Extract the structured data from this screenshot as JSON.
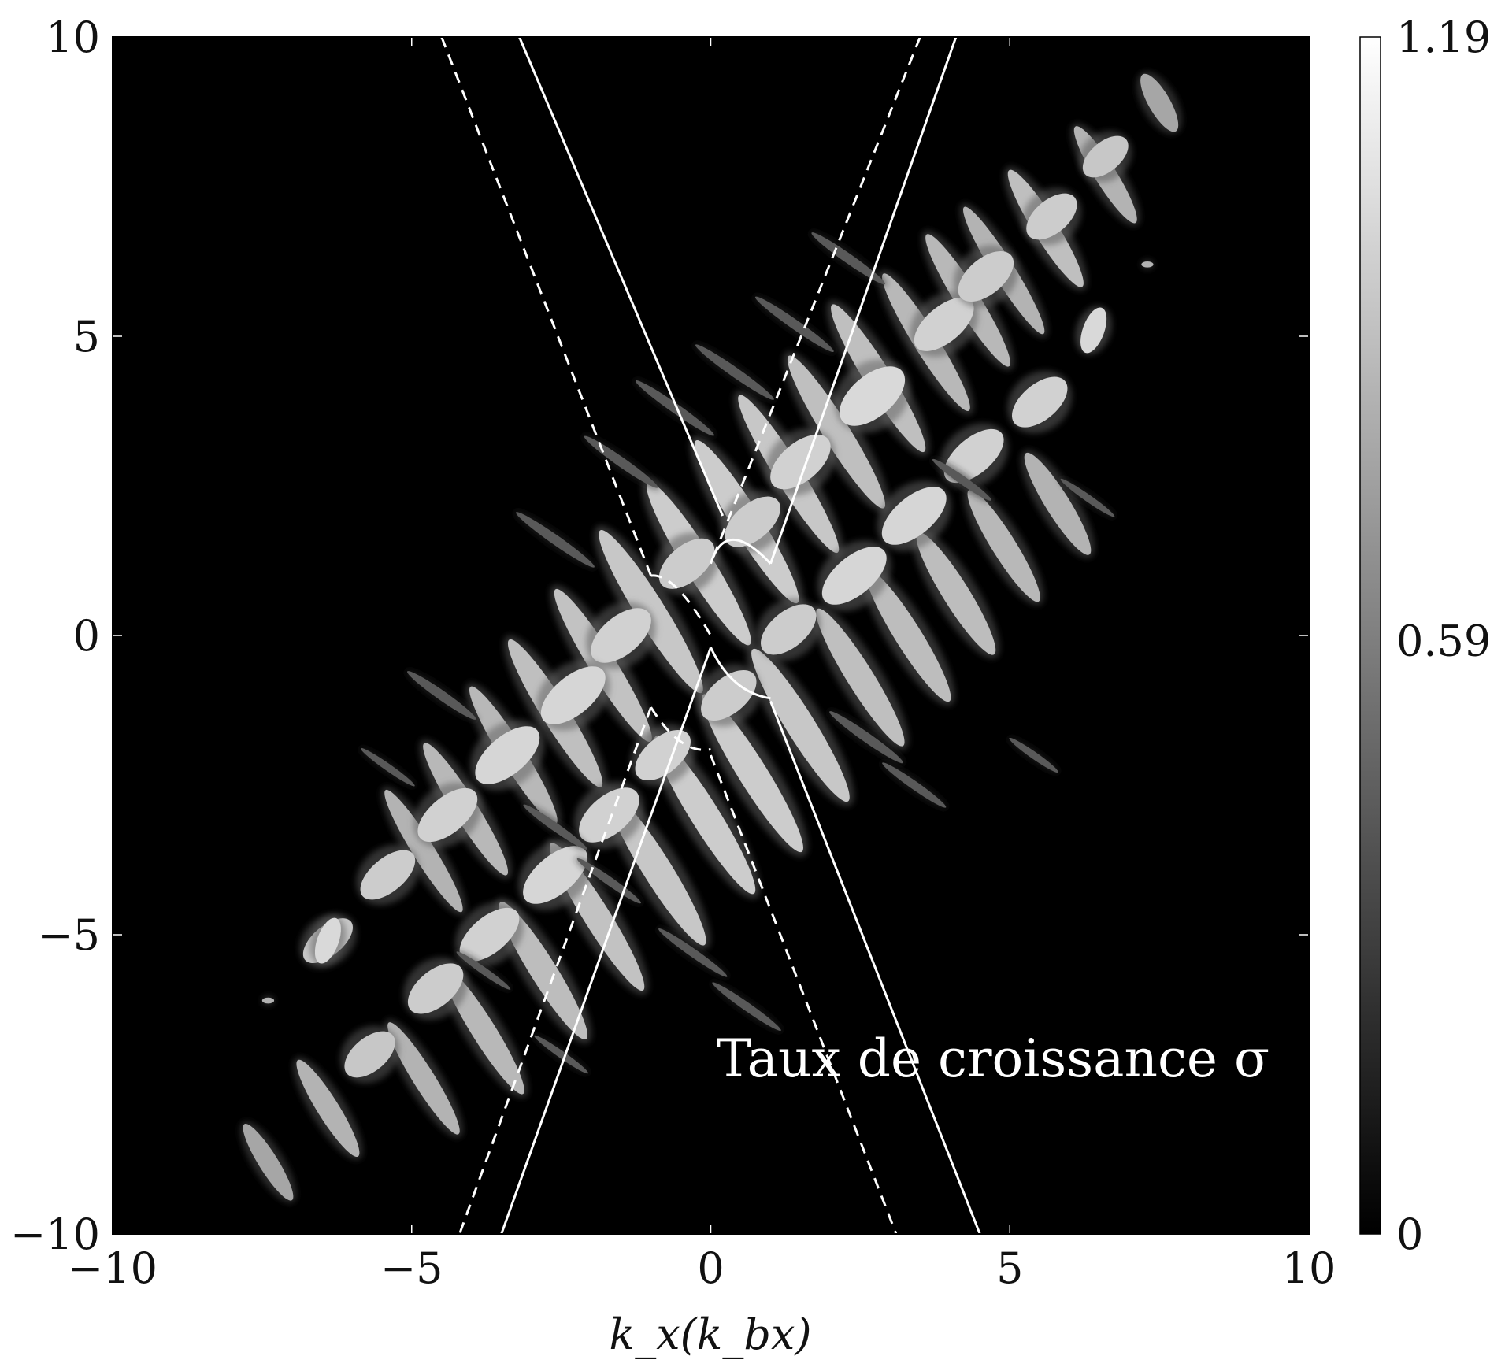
{
  "chart_data": {
    "type": "heatmap",
    "title": "",
    "xlabel": "k_x(k_bx)",
    "ylabel": "",
    "xlim": [
      -10,
      10
    ],
    "ylim": [
      -10,
      10
    ],
    "x_ticks": [
      -10,
      -5,
      0,
      5,
      10
    ],
    "y_ticks": [
      -10,
      -5,
      0,
      5,
      10
    ],
    "x_tick_labels": [
      "−10",
      "−5",
      "0",
      "5",
      "10"
    ],
    "y_tick_labels": [
      "−10",
      "−5",
      "0",
      "5",
      "10"
    ],
    "colormap": "gray",
    "background_color": "#000000",
    "colorbar": {
      "min": 0,
      "max": 1.19,
      "ticks": [
        0,
        0.59,
        1.19
      ],
      "tick_labels": [
        "0",
        "0.59",
        "1.19"
      ]
    },
    "annotation": "Taux de croissance σ",
    "resonance_curves": [
      {
        "style": "solid",
        "branches": [
          {
            "points": [
              [
                -3.2,
                10
              ],
              [
                0.2,
                2.0
              ]
            ]
          },
          {
            "points": [
              [
                4.1,
                10
              ],
              [
                1.0,
                1.2
              ]
            ]
          },
          {
            "points": [
              [
                0.0,
                -0.2
              ],
              [
                -3.5,
                -10
              ]
            ]
          },
          {
            "points": [
              [
                1.0,
                -1.1
              ],
              [
                4.5,
                -10
              ]
            ]
          }
        ],
        "arcs": [
          {
            "points": [
              [
                0.0,
                1.2
              ],
              [
                0.25,
                2.0
              ],
              [
                1.0,
                1.2
              ]
            ]
          },
          {
            "points": [
              [
                0.0,
                -0.2
              ],
              [
                0.35,
                -0.95
              ],
              [
                1.0,
                -1.05
              ]
            ]
          }
        ]
      },
      {
        "style": "dashed",
        "branches": [
          {
            "points": [
              [
                -4.5,
                10
              ],
              [
                -1.0,
                1.0
              ]
            ]
          },
          {
            "points": [
              [
                3.5,
                10
              ],
              [
                0.0,
                1.2
              ]
            ]
          },
          {
            "points": [
              [
                -1.0,
                -1.2
              ],
              [
                -4.2,
                -10
              ]
            ]
          },
          {
            "points": [
              [
                0.0,
                -2.0
              ],
              [
                3.1,
                -10
              ]
            ]
          }
        ],
        "arcs": [
          {
            "points": [
              [
                -1.0,
                1.0
              ],
              [
                -0.6,
                1.05
              ],
              [
                0.0,
                0.0
              ]
            ]
          },
          {
            "points": [
              [
                -1.0,
                -1.2
              ],
              [
                -0.5,
                -2.0
              ],
              [
                0.0,
                -1.9
              ]
            ]
          }
        ]
      }
    ],
    "features": [
      {
        "x": 7.5,
        "y": 8.9,
        "w": 0.18,
        "h": 0.55,
        "angle": 60,
        "intensity": 0.65
      },
      {
        "x": 6.6,
        "y": 7.7,
        "w": 0.18,
        "h": 0.95,
        "angle": 58,
        "intensity": 0.7
      },
      {
        "x": 5.6,
        "y": 6.8,
        "w": 0.2,
        "h": 1.15,
        "angle": 58,
        "intensity": 0.75
      },
      {
        "x": 4.9,
        "y": 6.1,
        "w": 0.18,
        "h": 1.25,
        "angle": 58,
        "intensity": 0.7
      },
      {
        "x": 4.3,
        "y": 5.6,
        "w": 0.2,
        "h": 1.3,
        "angle": 58,
        "intensity": 0.72
      },
      {
        "x": 3.6,
        "y": 4.9,
        "w": 0.2,
        "h": 1.35,
        "angle": 58,
        "intensity": 0.72
      },
      {
        "x": 2.8,
        "y": 4.3,
        "w": 0.22,
        "h": 1.45,
        "angle": 58,
        "intensity": 0.75
      },
      {
        "x": 2.1,
        "y": 3.4,
        "w": 0.22,
        "h": 1.5,
        "angle": 58,
        "intensity": 0.75
      },
      {
        "x": 1.3,
        "y": 2.7,
        "w": 0.22,
        "h": 1.55,
        "angle": 58,
        "intensity": 0.78
      },
      {
        "x": 0.6,
        "y": 1.9,
        "w": 0.24,
        "h": 1.6,
        "angle": 58,
        "intensity": 0.8
      },
      {
        "x": -0.2,
        "y": 1.2,
        "w": 0.24,
        "h": 1.6,
        "angle": 58,
        "intensity": 0.8
      },
      {
        "x": -1.0,
        "y": 0.4,
        "w": 0.24,
        "h": 1.6,
        "angle": 58,
        "intensity": 0.78
      },
      {
        "x": -1.8,
        "y": -0.5,
        "w": 0.22,
        "h": 1.5,
        "angle": 58,
        "intensity": 0.76
      },
      {
        "x": -2.6,
        "y": -1.3,
        "w": 0.22,
        "h": 1.45,
        "angle": 58,
        "intensity": 0.75
      },
      {
        "x": -3.3,
        "y": -2.0,
        "w": 0.2,
        "h": 1.35,
        "angle": 58,
        "intensity": 0.72
      },
      {
        "x": -4.1,
        "y": -2.9,
        "w": 0.2,
        "h": 1.3,
        "angle": 58,
        "intensity": 0.72
      },
      {
        "x": -4.8,
        "y": -3.6,
        "w": 0.18,
        "h": 1.2,
        "angle": 58,
        "intensity": 0.7
      },
      {
        "x": 5.8,
        "y": 2.2,
        "w": 0.2,
        "h": 1.0,
        "angle": 58,
        "intensity": 0.7
      },
      {
        "x": 4.9,
        "y": 1.5,
        "w": 0.2,
        "h": 1.1,
        "angle": 58,
        "intensity": 0.72
      },
      {
        "x": 4.1,
        "y": 0.7,
        "w": 0.22,
        "h": 1.2,
        "angle": 58,
        "intensity": 0.74
      },
      {
        "x": 3.3,
        "y": 0.0,
        "w": 0.22,
        "h": 1.3,
        "angle": 58,
        "intensity": 0.74
      },
      {
        "x": 2.5,
        "y": -0.7,
        "w": 0.22,
        "h": 1.35,
        "angle": 58,
        "intensity": 0.75
      },
      {
        "x": 1.5,
        "y": -1.5,
        "w": 0.24,
        "h": 1.5,
        "angle": 58,
        "intensity": 0.78
      },
      {
        "x": 0.7,
        "y": -2.3,
        "w": 0.24,
        "h": 1.55,
        "angle": 58,
        "intensity": 0.8
      },
      {
        "x": -0.1,
        "y": -3.0,
        "w": 0.24,
        "h": 1.55,
        "angle": 58,
        "intensity": 0.8
      },
      {
        "x": -0.9,
        "y": -3.9,
        "w": 0.24,
        "h": 1.5,
        "angle": 58,
        "intensity": 0.78
      },
      {
        "x": -1.9,
        "y": -4.7,
        "w": 0.22,
        "h": 1.45,
        "angle": 58,
        "intensity": 0.76
      },
      {
        "x": -2.8,
        "y": -5.6,
        "w": 0.22,
        "h": 1.35,
        "angle": 58,
        "intensity": 0.74
      },
      {
        "x": -3.8,
        "y": -6.6,
        "w": 0.2,
        "h": 1.25,
        "angle": 58,
        "intensity": 0.72
      },
      {
        "x": -4.8,
        "y": -7.4,
        "w": 0.18,
        "h": 1.1,
        "angle": 58,
        "intensity": 0.7
      },
      {
        "x": -6.4,
        "y": -7.9,
        "w": 0.18,
        "h": 0.95,
        "angle": 58,
        "intensity": 0.7
      },
      {
        "x": -7.4,
        "y": -8.8,
        "w": 0.16,
        "h": 0.75,
        "angle": 58,
        "intensity": 0.65
      },
      {
        "x": 2.7,
        "y": 4.0,
        "w": 0.35,
        "h": 0.65,
        "angle": 140,
        "intensity": 0.85
      },
      {
        "x": 3.9,
        "y": 5.2,
        "w": 0.3,
        "h": 0.6,
        "angle": 140,
        "intensity": 0.82
      },
      {
        "x": 4.6,
        "y": 6.0,
        "w": 0.3,
        "h": 0.55,
        "angle": 140,
        "intensity": 0.8
      },
      {
        "x": 5.7,
        "y": 7.0,
        "w": 0.28,
        "h": 0.5,
        "angle": 140,
        "intensity": 0.8
      },
      {
        "x": 6.6,
        "y": 8.0,
        "w": 0.25,
        "h": 0.45,
        "angle": 140,
        "intensity": 0.78
      },
      {
        "x": 1.5,
        "y": 2.9,
        "w": 0.32,
        "h": 0.6,
        "angle": 140,
        "intensity": 0.82
      },
      {
        "x": 0.7,
        "y": 1.9,
        "w": 0.3,
        "h": 0.55,
        "angle": 140,
        "intensity": 0.8
      },
      {
        "x": -0.4,
        "y": 1.2,
        "w": 0.3,
        "h": 0.55,
        "angle": 140,
        "intensity": 0.8
      },
      {
        "x": -1.5,
        "y": 0.0,
        "w": 0.32,
        "h": 0.6,
        "angle": 140,
        "intensity": 0.82
      },
      {
        "x": -2.3,
        "y": -1.0,
        "w": 0.32,
        "h": 0.65,
        "angle": 140,
        "intensity": 0.84
      },
      {
        "x": -3.4,
        "y": -2.0,
        "w": 0.32,
        "h": 0.65,
        "angle": 140,
        "intensity": 0.84
      },
      {
        "x": -4.4,
        "y": -3.0,
        "w": 0.3,
        "h": 0.6,
        "angle": 140,
        "intensity": 0.82
      },
      {
        "x": -5.4,
        "y": -4.0,
        "w": 0.28,
        "h": 0.55,
        "angle": 140,
        "intensity": 0.8
      },
      {
        "x": -6.4,
        "y": -5.1,
        "w": 0.25,
        "h": 0.5,
        "angle": 140,
        "intensity": 0.78
      },
      {
        "x": 5.5,
        "y": 3.9,
        "w": 0.3,
        "h": 0.55,
        "angle": 140,
        "intensity": 0.82
      },
      {
        "x": 4.4,
        "y": 3.0,
        "w": 0.3,
        "h": 0.6,
        "angle": 140,
        "intensity": 0.82
      },
      {
        "x": 3.4,
        "y": 2.0,
        "w": 0.32,
        "h": 0.65,
        "angle": 140,
        "intensity": 0.84
      },
      {
        "x": 2.4,
        "y": 1.0,
        "w": 0.32,
        "h": 0.65,
        "angle": 140,
        "intensity": 0.84
      },
      {
        "x": 1.3,
        "y": 0.1,
        "w": 0.3,
        "h": 0.55,
        "angle": 140,
        "intensity": 0.8
      },
      {
        "x": 0.3,
        "y": -1.0,
        "w": 0.3,
        "h": 0.55,
        "angle": 140,
        "intensity": 0.8
      },
      {
        "x": -0.8,
        "y": -2.0,
        "w": 0.3,
        "h": 0.55,
        "angle": 140,
        "intensity": 0.82
      },
      {
        "x": -1.7,
        "y": -3.0,
        "w": 0.32,
        "h": 0.6,
        "angle": 140,
        "intensity": 0.82
      },
      {
        "x": -2.6,
        "y": -4.0,
        "w": 0.32,
        "h": 0.65,
        "angle": 140,
        "intensity": 0.84
      },
      {
        "x": -3.7,
        "y": -5.0,
        "w": 0.3,
        "h": 0.6,
        "angle": 140,
        "intensity": 0.82
      },
      {
        "x": -4.6,
        "y": -5.9,
        "w": 0.3,
        "h": 0.55,
        "angle": 140,
        "intensity": 0.8
      },
      {
        "x": -5.7,
        "y": -7.0,
        "w": 0.28,
        "h": 0.5,
        "angle": 140,
        "intensity": 0.78
      },
      {
        "x": 6.4,
        "y": 5.1,
        "w": 0.18,
        "h": 0.4,
        "angle": 110,
        "intensity": 0.85
      },
      {
        "x": -6.4,
        "y": -5.1,
        "w": 0.18,
        "h": 0.4,
        "angle": 110,
        "intensity": 0.85
      },
      {
        "x": 7.3,
        "y": 6.2,
        "w": 0.05,
        "h": 0.1,
        "angle": 0,
        "intensity": 0.7
      },
      {
        "x": -7.4,
        "y": -6.1,
        "w": 0.05,
        "h": 0.1,
        "angle": 0,
        "intensity": 0.7
      },
      {
        "x": 2.3,
        "y": 6.3,
        "w": 0.08,
        "h": 0.75,
        "angle": 35,
        "intensity": 0.35
      },
      {
        "x": 1.4,
        "y": 5.2,
        "w": 0.08,
        "h": 0.8,
        "angle": 35,
        "intensity": 0.35
      },
      {
        "x": 0.4,
        "y": 4.4,
        "w": 0.08,
        "h": 0.8,
        "angle": 35,
        "intensity": 0.35
      },
      {
        "x": -0.6,
        "y": 3.8,
        "w": 0.08,
        "h": 0.8,
        "angle": 35,
        "intensity": 0.35
      },
      {
        "x": -1.5,
        "y": 2.9,
        "w": 0.08,
        "h": 0.75,
        "angle": 35,
        "intensity": 0.35
      },
      {
        "x": -2.6,
        "y": 1.6,
        "w": 0.08,
        "h": 0.8,
        "angle": 35,
        "intensity": 0.35
      },
      {
        "x": -4.5,
        "y": -1.0,
        "w": 0.08,
        "h": 0.7,
        "angle": 35,
        "intensity": 0.35
      },
      {
        "x": -5.4,
        "y": -2.2,
        "w": 0.06,
        "h": 0.55,
        "angle": 35,
        "intensity": 0.35
      },
      {
        "x": 2.6,
        "y": -1.7,
        "w": 0.08,
        "h": 0.75,
        "angle": 35,
        "intensity": 0.35
      },
      {
        "x": 3.4,
        "y": -2.5,
        "w": 0.07,
        "h": 0.65,
        "angle": 35,
        "intensity": 0.35
      },
      {
        "x": 4.2,
        "y": 2.6,
        "w": 0.07,
        "h": 0.6,
        "angle": 35,
        "intensity": 0.35
      },
      {
        "x": 5.4,
        "y": -2.0,
        "w": 0.06,
        "h": 0.5,
        "angle": 35,
        "intensity": 0.35
      },
      {
        "x": 6.3,
        "y": 2.3,
        "w": 0.06,
        "h": 0.55,
        "angle": 35,
        "intensity": 0.35
      },
      {
        "x": -2.6,
        "y": -3.2,
        "w": 0.07,
        "h": 0.65,
        "angle": 35,
        "intensity": 0.35
      },
      {
        "x": -1.7,
        "y": -4.1,
        "w": 0.07,
        "h": 0.65,
        "angle": 35,
        "intensity": 0.35
      },
      {
        "x": -0.3,
        "y": -5.3,
        "w": 0.07,
        "h": 0.7,
        "angle": 35,
        "intensity": 0.35
      },
      {
        "x": 0.6,
        "y": -6.2,
        "w": 0.07,
        "h": 0.7,
        "angle": 35,
        "intensity": 0.35
      },
      {
        "x": -3.8,
        "y": -5.6,
        "w": 0.06,
        "h": 0.55,
        "angle": 35,
        "intensity": 0.35
      },
      {
        "x": -2.5,
        "y": -7.0,
        "w": 0.06,
        "h": 0.55,
        "angle": 35,
        "intensity": 0.35
      }
    ]
  }
}
